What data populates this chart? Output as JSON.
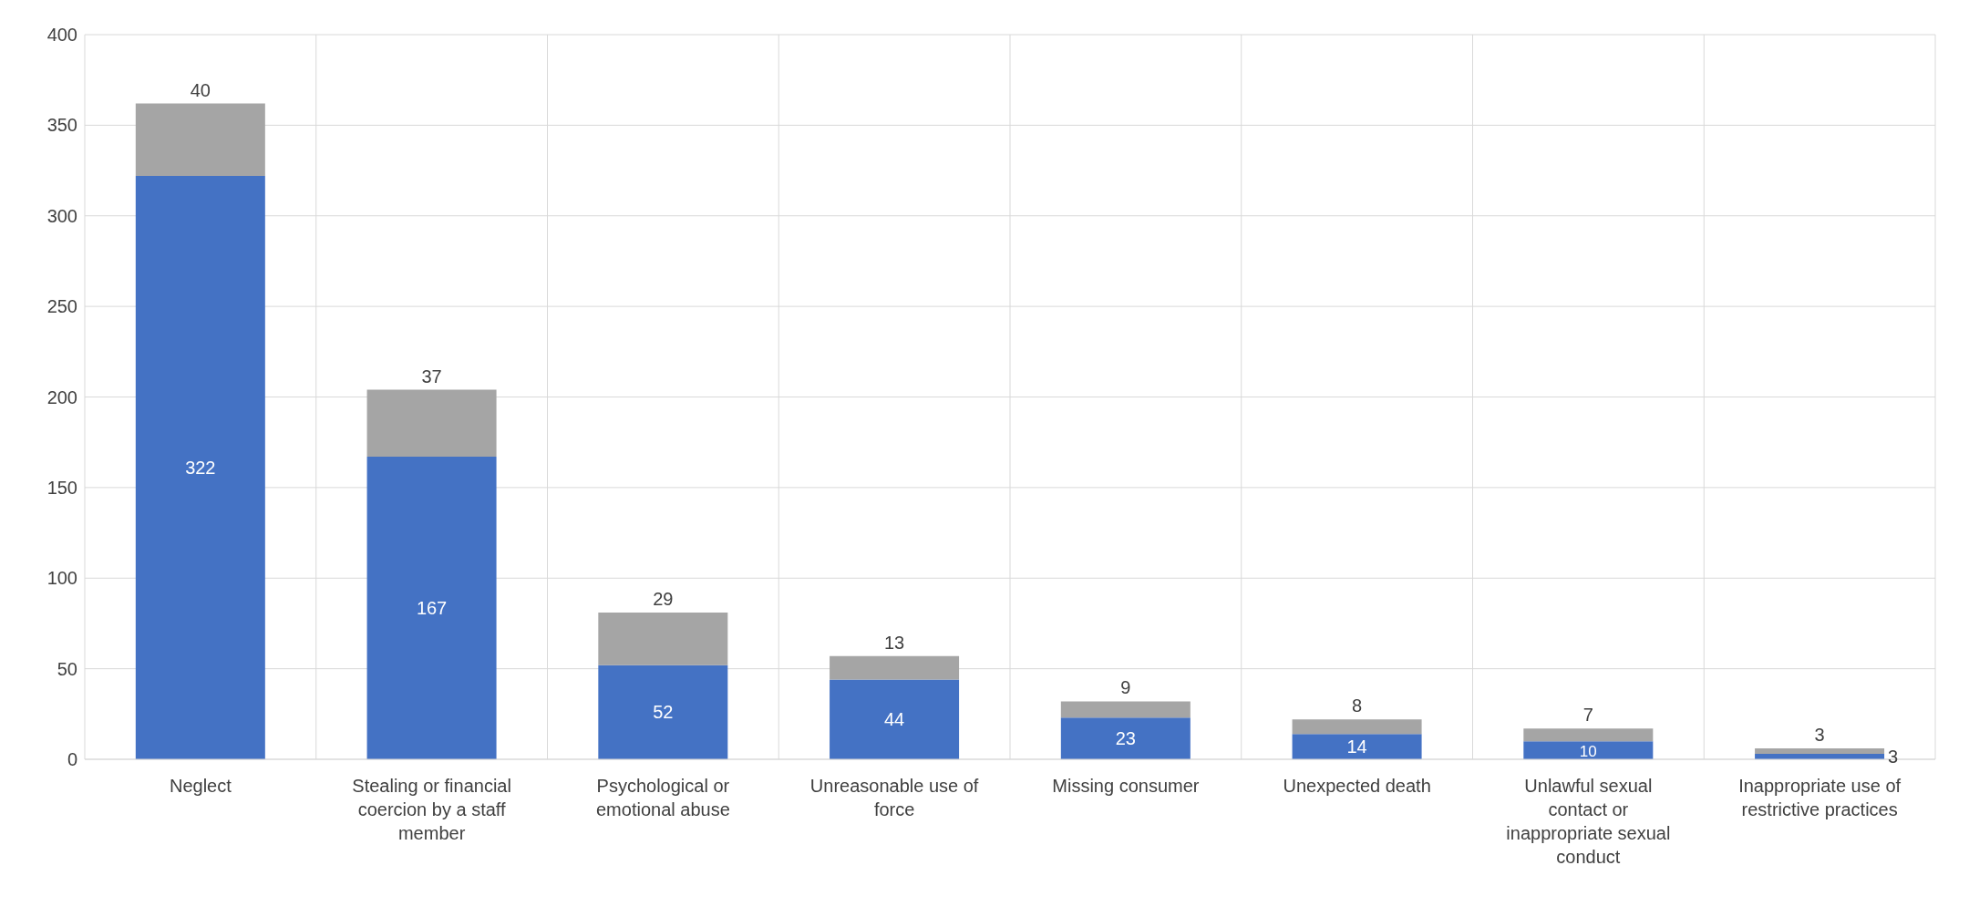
{
  "chart_data": {
    "type": "bar",
    "stacked": true,
    "categories": [
      "Neglect",
      "Stealing or financial coercion by a staff member",
      "Psychological or emotional abuse",
      "Unreasonable use of force",
      "Missing consumer",
      "Unexpected death",
      "Unlawful sexual contact or inappropriate sexual conduct",
      "Inappropriate use of restrictive practices"
    ],
    "series": [
      {
        "color": "#4472c4",
        "values": [
          322,
          167,
          52,
          44,
          23,
          14,
          10,
          3
        ]
      },
      {
        "color": "#a5a5a5",
        "values": [
          40,
          37,
          29,
          13,
          9,
          8,
          7,
          3
        ]
      }
    ],
    "ylim": [
      0,
      400
    ],
    "yticks": [
      0,
      50,
      100,
      150,
      200,
      250,
      300,
      350,
      400
    ],
    "grid": true,
    "data_labels": true
  }
}
